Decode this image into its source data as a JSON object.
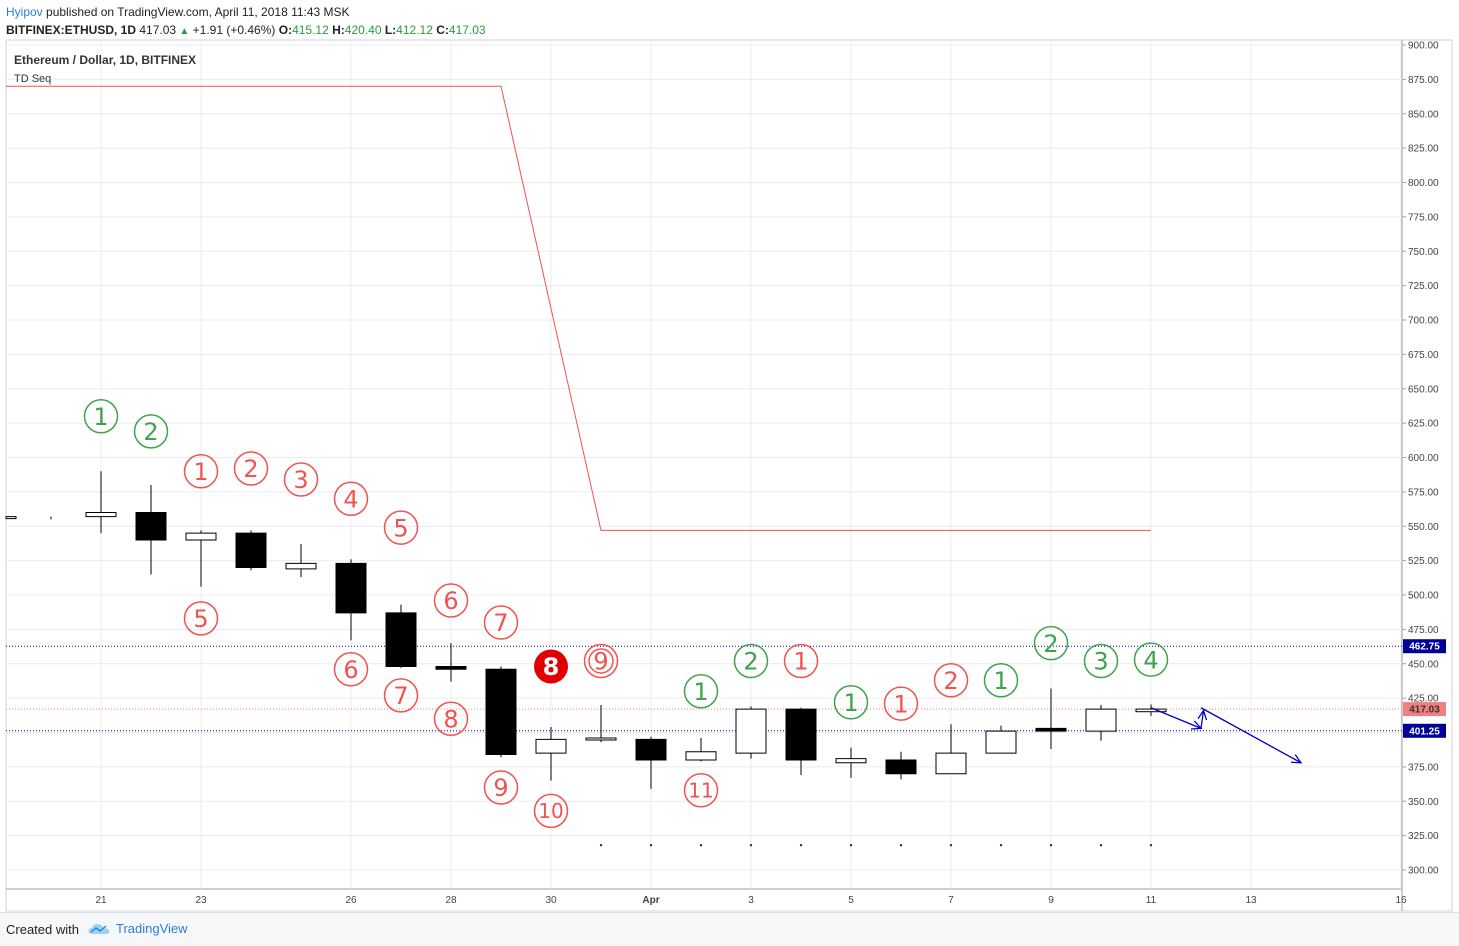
{
  "header": {
    "author": "Hyipov",
    "published": "published on TradingView.com, April 11, 2018 11:43 MSK",
    "symbol": "BITFINEX:ETHUSD, 1D",
    "last": "417.03",
    "change_arrow": "▲",
    "change": "+1.91 (+0.46%)",
    "o_label": "O:",
    "o_value": "415.12",
    "h_label": "H:",
    "h_value": "420.40",
    "l_label": "L:",
    "l_value": "412.12",
    "c_label": "C:",
    "c_value": "417.03"
  },
  "footer": {
    "created_with": "Created with",
    "brand": "TradingView",
    "brand_icon": "tradingview-cloud-icon"
  },
  "colors": {
    "buy": "#3fa34d",
    "sell": "#f05350",
    "candle": "#000000",
    "hline": "#000099",
    "stop": "#f05350",
    "arrow": "#0000cc"
  },
  "chart_data": {
    "type": "candlestick",
    "title": "Ethereum / Dollar, 1D, BITFINEX",
    "indicator": "TD Seq",
    "ylim": [
      300,
      900
    ],
    "y_ticks": [
      "300.00",
      "325.00",
      "350.00",
      "375.00",
      "400.00",
      "425.00",
      "450.00",
      "475.00",
      "500.00",
      "525.00",
      "550.00",
      "575.00",
      "600.00",
      "625.00",
      "650.00",
      "675.00",
      "700.00",
      "725.00",
      "750.00",
      "775.00",
      "800.00",
      "825.00",
      "850.00",
      "875.00",
      "900.00"
    ],
    "x_ticks": [
      {
        "i": 1,
        "label": "21"
      },
      {
        "i": 3,
        "label": "23"
      },
      {
        "i": 6,
        "label": "26"
      },
      {
        "i": 8,
        "label": "28"
      },
      {
        "i": 10,
        "label": "30"
      },
      {
        "i": 12,
        "label": "Apr"
      },
      {
        "i": 14,
        "label": "3"
      },
      {
        "i": 16,
        "label": "5"
      },
      {
        "i": 18,
        "label": "7"
      },
      {
        "i": 20,
        "label": "9"
      },
      {
        "i": 22,
        "label": "11"
      },
      {
        "i": 24,
        "label": "13"
      },
      {
        "i": 27,
        "label": "16"
      }
    ],
    "candles": [
      {
        "date": "2018-03-20",
        "i": 0,
        "o": 556,
        "h": 557,
        "l": 555,
        "c": 557
      },
      {
        "date": "2018-03-21",
        "i": 1,
        "o": 557,
        "h": 590,
        "l": 545,
        "c": 560
      },
      {
        "date": "2018-03-22",
        "i": 2,
        "o": 560,
        "h": 580,
        "l": 515,
        "c": 540
      },
      {
        "date": "2018-03-23",
        "i": 3,
        "o": 540,
        "h": 547,
        "l": 506,
        "c": 545
      },
      {
        "date": "2018-03-24",
        "i": 4,
        "o": 545,
        "h": 547,
        "l": 518,
        "c": 520
      },
      {
        "date": "2018-03-25",
        "i": 5,
        "o": 519,
        "h": 537,
        "l": 513,
        "c": 523
      },
      {
        "date": "2018-03-26",
        "i": 6,
        "o": 523,
        "h": 526,
        "l": 467,
        "c": 487
      },
      {
        "date": "2018-03-27",
        "i": 7,
        "o": 487,
        "h": 493,
        "l": 447,
        "c": 448
      },
      {
        "date": "2018-03-28",
        "i": 8,
        "o": 448,
        "h": 465,
        "l": 437,
        "c": 446
      },
      {
        "date": "2018-03-29",
        "i": 9,
        "o": 446,
        "h": 448,
        "l": 382,
        "c": 384
      },
      {
        "date": "2018-03-30",
        "i": 10,
        "o": 385,
        "h": 404,
        "l": 365,
        "c": 395
      },
      {
        "date": "2018-03-31",
        "i": 11,
        "o": 395,
        "h": 420,
        "l": 393,
        "c": 396
      },
      {
        "date": "2018-04-01",
        "i": 12,
        "o": 395,
        "h": 397,
        "l": 359,
        "c": 380
      },
      {
        "date": "2018-04-02",
        "i": 13,
        "o": 380,
        "h": 396,
        "l": 379,
        "c": 386
      },
      {
        "date": "2018-04-03",
        "i": 14,
        "o": 385,
        "h": 419,
        "l": 381,
        "c": 417
      },
      {
        "date": "2018-04-04",
        "i": 15,
        "o": 417,
        "h": 418,
        "l": 369,
        "c": 380
      },
      {
        "date": "2018-04-05",
        "i": 16,
        "o": 378,
        "h": 389,
        "l": 367,
        "c": 381
      },
      {
        "date": "2018-04-06",
        "i": 17,
        "o": 380,
        "h": 386,
        "l": 366,
        "c": 370
      },
      {
        "date": "2018-04-07",
        "i": 18,
        "o": 370,
        "h": 406,
        "l": 370,
        "c": 385
      },
      {
        "date": "2018-04-08",
        "i": 19,
        "o": 385,
        "h": 405,
        "l": 385,
        "c": 401
      },
      {
        "date": "2018-04-09",
        "i": 20,
        "o": 403,
        "h": 432,
        "l": 388,
        "c": 401
      },
      {
        "date": "2018-04-10",
        "i": 21,
        "o": 401,
        "h": 420,
        "l": 394,
        "c": 417
      },
      {
        "date": "2018-04-11",
        "i": 22,
        "o": 415.12,
        "h": 420.4,
        "l": 412.12,
        "c": 417.03
      }
    ],
    "td_labels": [
      {
        "i": 1,
        "n": "1",
        "kind": "buy",
        "at": 630
      },
      {
        "i": 2,
        "n": "2",
        "kind": "buy",
        "at": 619
      },
      {
        "i": 3,
        "n": "1",
        "kind": "sell",
        "at": 590
      },
      {
        "i": 3,
        "n": "5",
        "kind": "sell",
        "at": 483
      },
      {
        "i": 4,
        "n": "2",
        "kind": "sell",
        "at": 592
      },
      {
        "i": 5,
        "n": "3",
        "kind": "sell",
        "at": 584
      },
      {
        "i": 6,
        "n": "4",
        "kind": "sell",
        "at": 570
      },
      {
        "i": 6,
        "n": "6",
        "kind": "sell",
        "at": 446
      },
      {
        "i": 7,
        "n": "5",
        "kind": "sell",
        "at": 549
      },
      {
        "i": 7,
        "n": "7",
        "kind": "sell",
        "at": 427
      },
      {
        "i": 8,
        "n": "6",
        "kind": "sell",
        "at": 496
      },
      {
        "i": 8,
        "n": "8",
        "kind": "sell",
        "at": 410
      },
      {
        "i": 9,
        "n": "7",
        "kind": "sell",
        "at": 480
      },
      {
        "i": 9,
        "n": "9",
        "kind": "sell",
        "at": 360
      },
      {
        "i": 10,
        "n": "8",
        "kind": "sell-filled",
        "at": 448
      },
      {
        "i": 10,
        "n": "10",
        "kind": "sell",
        "at": 343
      },
      {
        "i": 11,
        "n": "9",
        "kind": "sell-double",
        "at": 452
      },
      {
        "i": 13,
        "n": "1",
        "kind": "buy",
        "at": 430
      },
      {
        "i": 13,
        "n": "11",
        "kind": "sell",
        "at": 358
      },
      {
        "i": 14,
        "n": "2",
        "kind": "buy",
        "at": 452
      },
      {
        "i": 15,
        "n": "1",
        "kind": "sell",
        "at": 452
      },
      {
        "i": 16,
        "n": "1",
        "kind": "buy",
        "at": 422
      },
      {
        "i": 17,
        "n": "1",
        "kind": "sell",
        "at": 421
      },
      {
        "i": 18,
        "n": "2",
        "kind": "sell",
        "at": 438
      },
      {
        "i": 19,
        "n": "1",
        "kind": "buy",
        "at": 438
      },
      {
        "i": 20,
        "n": "2",
        "kind": "buy",
        "at": 465
      },
      {
        "i": 21,
        "n": "3",
        "kind": "buy",
        "at": 452
      },
      {
        "i": 22,
        "n": "4",
        "kind": "buy",
        "at": 453
      }
    ],
    "stop_line": [
      [
        0,
        870
      ],
      [
        9,
        870
      ],
      [
        11,
        547
      ],
      [
        22,
        547
      ]
    ],
    "dot_markers": {
      "from": 11,
      "to": 22,
      "value": 318
    },
    "price_lines": [
      {
        "value": 462.75,
        "label": "462.75",
        "style": "dotted",
        "color": "#000099"
      },
      {
        "value": 417.03,
        "label": "417.03",
        "style": "dotted",
        "color": "#f08080"
      },
      {
        "value": 401.25,
        "label": "401.25",
        "style": "dotted",
        "color": "#000099"
      }
    ],
    "arrows": [
      {
        "from": [
          22,
          418
        ],
        "to": [
          23,
          403
        ]
      },
      {
        "from": [
          23,
          403
        ],
        "to": [
          23.05,
          416
        ]
      },
      {
        "from": [
          23,
          418
        ],
        "to": [
          25,
          378
        ]
      }
    ],
    "grid": true,
    "legend": "none"
  }
}
